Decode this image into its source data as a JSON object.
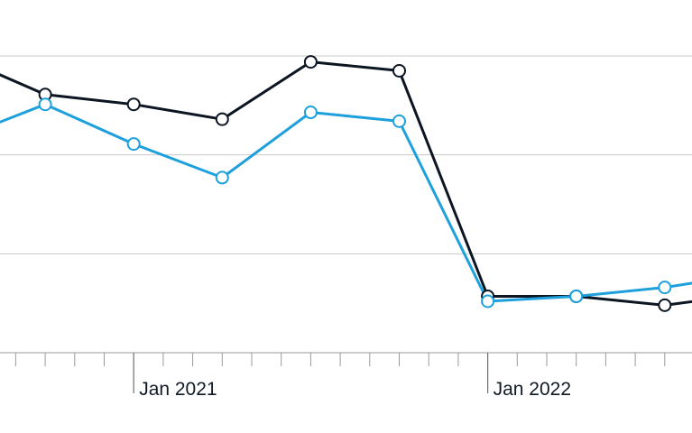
{
  "chart_data": {
    "type": "line",
    "x_unit": "month",
    "x": [
      "2020-07",
      "2020-10",
      "2021-01",
      "2021-04",
      "2021-07",
      "2021-10",
      "2022-01",
      "2022-04",
      "2022-07",
      "2022-10"
    ],
    "xlim": [
      "2020-06",
      "2022-11"
    ],
    "ylim": [
      0,
      300
    ],
    "series": [
      {
        "color": "#0b1622",
        "values": [
          300,
          261,
          251,
          236,
          294,
          285,
          57,
          57,
          48,
          60
        ]
      },
      {
        "color": "#1ea0dc",
        "values": [
          216,
          251,
          211,
          177,
          243,
          234,
          52,
          57,
          66,
          80
        ]
      }
    ],
    "x_tick_labels": [
      {
        "date": "2021-01",
        "label": "Jan 2021"
      },
      {
        "date": "2022-01",
        "label": "Jan 2022"
      }
    ],
    "grid": true,
    "legend": "none"
  }
}
